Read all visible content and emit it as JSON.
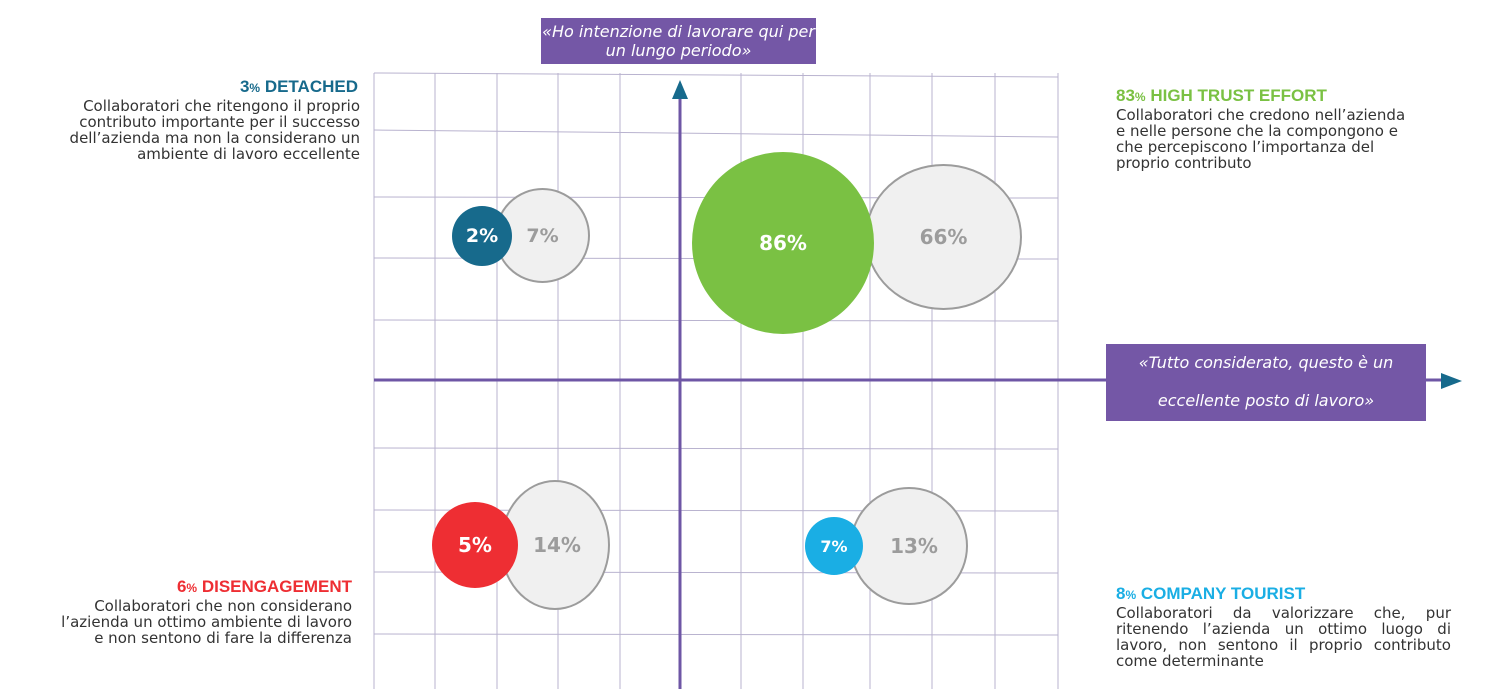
{
  "axes": {
    "y_label": "«Ho intenzione di lavorare qui per un lungo periodo»",
    "x_label": "«Tutto considerato, questo è un eccellente posto di lavoro»"
  },
  "colors": {
    "axis": "#6e56a5",
    "grid": "#b9b3cf",
    "label_box": "#7457a6",
    "detached": "#176a8c",
    "high_trust": "#7ac143",
    "disengagement": "#ee2e33",
    "tourist": "#1aaee4",
    "ghost": "#9c9c9c"
  },
  "quadrants": {
    "detached": {
      "pct": "3",
      "sign": "%",
      "title": "DETACHED",
      "desc": "Collaboratori che ritengono il proprio contributo importante per il successo dell’azienda ma non la considerano un ambiente di lavoro eccellente",
      "current": "2%",
      "previous": "7%"
    },
    "high_trust": {
      "pct": "83",
      "sign": "%",
      "title": "HIGH TRUST EFFORT",
      "desc": "Collaboratori che credono nell’azienda e nelle persone che la compongono e che percepiscono l’importanza del proprio contributo",
      "current": "86%",
      "previous": "66%"
    },
    "disengagement": {
      "pct": "6",
      "sign": "%",
      "title": "DISENGAGEMENT",
      "desc": "Collaboratori che non considerano l’azienda un ottimo ambiente di lavoro e non sentono di fare la differenza",
      "current": "5%",
      "previous": "14%"
    },
    "tourist": {
      "pct": "8",
      "sign": "%",
      "title": "COMPANY TOURIST",
      "desc": "Collaboratori da valorizzare che, pur ritenendo l’azienda un ottimo luogo di lavoro, non sentono il proprio contributo come determinante",
      "current": "7%",
      "previous": "13%"
    }
  }
}
